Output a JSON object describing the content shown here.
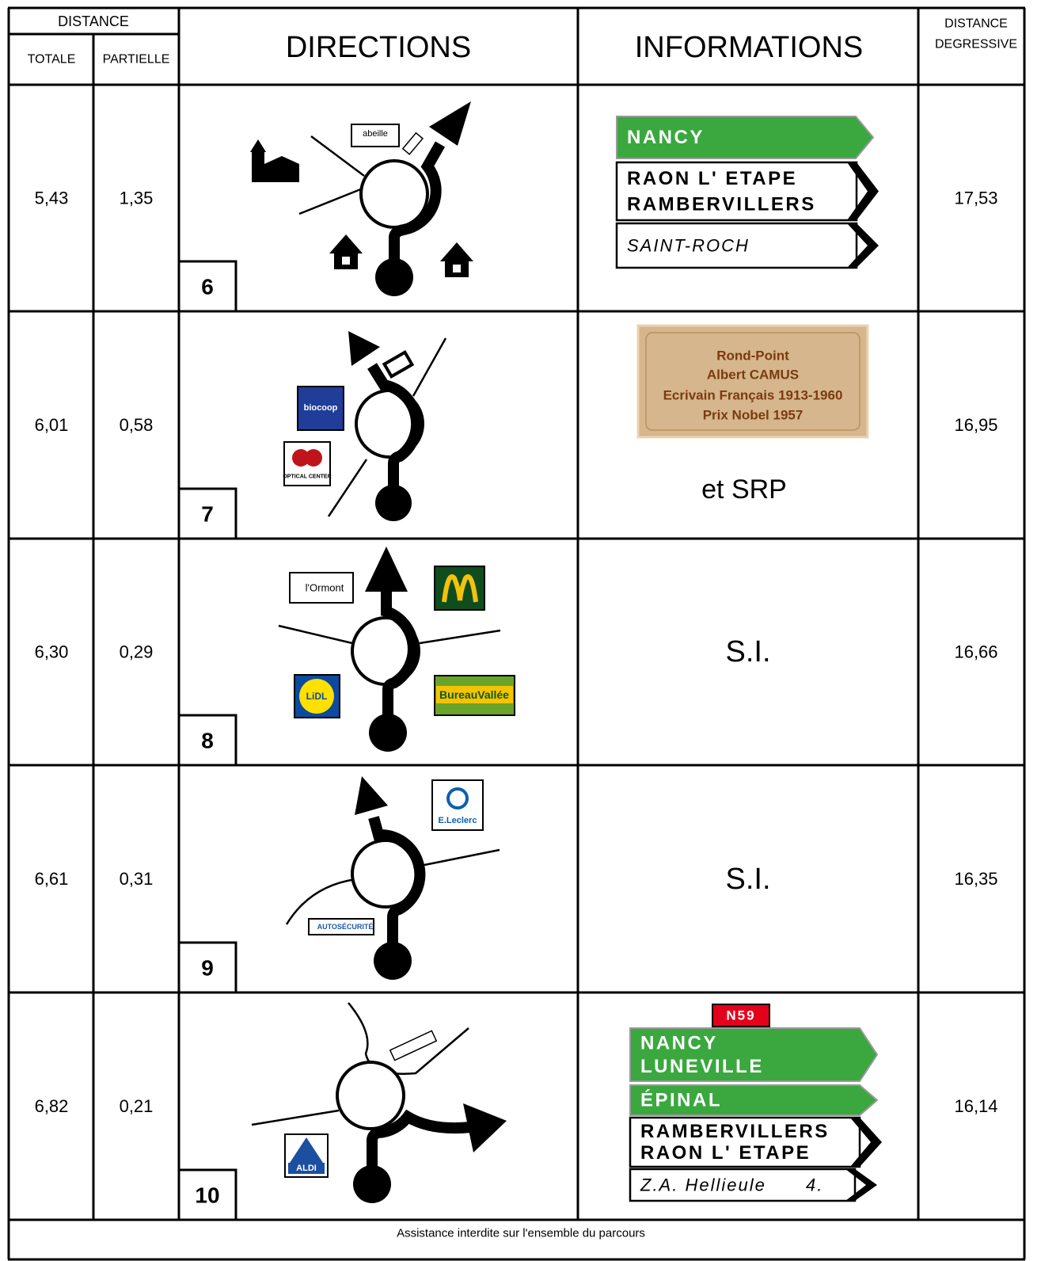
{
  "header": {
    "distance": "DISTANCE",
    "totale": "TOTALE",
    "partielle": "PARTIELLE",
    "directions": "DIRECTIONS",
    "informations": "INFORMATIONS",
    "distance_degressive": [
      "DISTANCE",
      "DEGRESSIVE"
    ]
  },
  "rows": [
    {
      "totale": "5,43",
      "partielle": "1,35",
      "number": "6",
      "degressive": "17,53",
      "logos": [
        "abeille"
      ],
      "signs": [
        {
          "color": "green",
          "lines": [
            "NANCY"
          ]
        },
        {
          "color": "white",
          "lines": [
            "RAON L' ETAPE",
            "RAMBERVILLERS"
          ]
        },
        {
          "color": "white",
          "italic": true,
          "lines": [
            "SAINT-ROCH"
          ]
        }
      ]
    },
    {
      "totale": "6,01",
      "partielle": "0,58",
      "number": "7",
      "degressive": "16,95",
      "logos": [
        "biocoop",
        "OPTICAL CENTER"
      ],
      "plaque": [
        "Rond-Point",
        "Albert CAMUS",
        "Ecrivain Français 1913-1960",
        "Prix Nobel 1957"
      ],
      "note": "et SRP"
    },
    {
      "totale": "6,30",
      "partielle": "0,29",
      "number": "8",
      "degressive": "16,66",
      "logos": [
        "l'Ormont",
        "LiDL",
        "BureauVallée"
      ],
      "note": "S.I."
    },
    {
      "totale": "6,61",
      "partielle": "0,31",
      "number": "9",
      "degressive": "16,35",
      "logos": [
        "E.Leclerc",
        "AUTOSÉCURITÉ"
      ],
      "note": "S.I."
    },
    {
      "totale": "6,82",
      "partielle": "0,21",
      "number": "10",
      "degressive": "16,14",
      "logos": [
        "ALDI"
      ],
      "route": "N59",
      "signs": [
        {
          "color": "green",
          "lines": [
            "NANCY",
            "LUNEVILLE"
          ]
        },
        {
          "color": "green",
          "lines": [
            "ÉPINAL"
          ]
        },
        {
          "color": "white",
          "lines": [
            "RAMBERVILLERS",
            "RAON L' ETAPE"
          ]
        },
        {
          "color": "white",
          "italic": true,
          "lines": [
            "Z.A. Hellieule",
            "4."
          ]
        }
      ]
    }
  ],
  "footer": "Assistance interdite sur l'ensemble du parcours"
}
